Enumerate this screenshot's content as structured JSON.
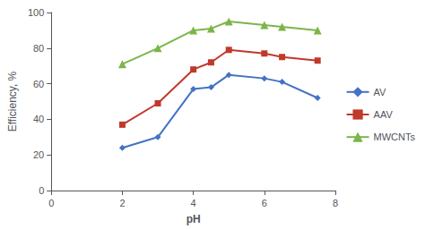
{
  "chart_data": {
    "type": "line",
    "xlabel": "pH",
    "ylabel": "Efficiency, %",
    "x": [
      2,
      3,
      4,
      4.5,
      5,
      6,
      6.5,
      7.5
    ],
    "series": [
      {
        "name": "AV",
        "color": "#4472C4",
        "marker": "diamond",
        "values": [
          24,
          30,
          57,
          58,
          65,
          63,
          61,
          52
        ]
      },
      {
        "name": "AAV",
        "color": "#C0392B",
        "marker": "square",
        "values": [
          37,
          49,
          68,
          72,
          79,
          77,
          75,
          73
        ]
      },
      {
        "name": "MWCNTs",
        "color": "#7AB648",
        "marker": "triangle",
        "values": [
          71,
          80,
          90,
          91,
          95,
          93,
          92,
          90
        ]
      }
    ],
    "xlim": [
      0,
      8
    ],
    "xticks": [
      0,
      2,
      4,
      6,
      8
    ],
    "ylim": [
      0,
      100
    ],
    "yticks": [
      0,
      20,
      40,
      60,
      80,
      100
    ],
    "grid": false,
    "legend": "right"
  }
}
